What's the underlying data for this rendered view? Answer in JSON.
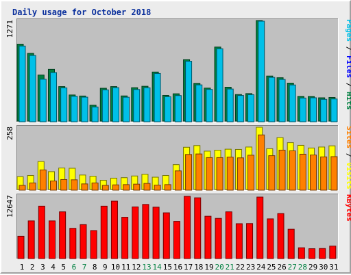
{
  "title": "Daily usage for October 2018",
  "colors": {
    "pages": "#00c0e8",
    "files": "#0000ff",
    "hits": "#008040",
    "sites": "#ff8000",
    "visits": "#ffff00",
    "kbytes": "#ff0000",
    "weekday_label": "#000000",
    "weekend_label": "#008040",
    "separator": "#000000"
  },
  "chart_data": {
    "type": "bar",
    "categories": [
      "1",
      "2",
      "3",
      "4",
      "5",
      "6",
      "7",
      "8",
      "9",
      "10",
      "11",
      "12",
      "13",
      "14",
      "15",
      "16",
      "17",
      "18",
      "19",
      "20",
      "21",
      "22",
      "23",
      "24",
      "25",
      "26",
      "27",
      "28",
      "29",
      "30",
      "31"
    ],
    "weekend_days": [
      "6",
      "7",
      "13",
      "14",
      "20",
      "21",
      "27",
      "28"
    ],
    "panels": [
      {
        "id": "top",
        "max_label": "1271",
        "ylim": [
          0,
          1271
        ],
        "side_label": {
          "parts": [
            {
              "text": "Pages",
              "color_key": "pages"
            },
            {
              "text": " / ",
              "color_key": "separator"
            },
            {
              "text": "Files",
              "color_key": "files"
            },
            {
              "text": " / ",
              "color_key": "separator"
            },
            {
              "text": "Hits",
              "color_key": "hits"
            }
          ]
        },
        "series": [
          {
            "name": "Hits",
            "color_key": "hits",
            "values": [
              972,
              856,
              582,
              654,
              436,
              330,
              317,
              201,
              415,
              436,
              318,
              422,
              440,
              620,
              324,
              345,
              777,
              477,
              417,
              936,
              428,
              336,
              347,
              1271,
              569,
              548,
              480,
              312,
              311,
              294,
              298
            ]
          },
          {
            "name": "Pages",
            "color_key": "pages",
            "values": [
              957,
              838,
              538,
              622,
              428,
              322,
              311,
              187,
              403,
              431,
              310,
              408,
              430,
              610,
              316,
              331,
              765,
              466,
              409,
              923,
              414,
              332,
              342,
              1271,
              561,
              535,
              465,
              300,
              303,
              283,
              288
            ]
          }
        ]
      },
      {
        "id": "middle",
        "max_label": "258",
        "ylim": [
          0,
          258
        ],
        "side_label": {
          "parts": [
            {
              "text": "Sites",
              "color_key": "sites"
            },
            {
              "text": " / ",
              "color_key": "separator"
            },
            {
              "text": "Visits",
              "color_key": "visits"
            }
          ]
        },
        "series": [
          {
            "name": "Visits",
            "color_key": "visits",
            "values": [
              53,
              58,
              116,
              74,
              89,
              88,
              60,
              55,
              38,
              47,
              49,
              56,
              63,
              51,
              58,
              103,
              175,
              182,
              159,
              163,
              167,
              166,
              176,
              258,
              169,
              215,
              194,
              183,
              172,
              176,
              181
            ]
          },
          {
            "name": "Sites",
            "color_key": "sites",
            "values": [
              20,
              30,
              84,
              38,
              44,
              43,
              26,
              30,
              20,
              22,
              23,
              25,
              28,
              21,
              23,
              80,
              148,
              150,
              135,
              135,
              137,
              134,
              145,
              229,
              143,
              166,
              163,
              149,
              146,
              138,
              139
            ]
          }
        ]
      },
      {
        "id": "bottom",
        "max_label": "12647",
        "ylim": [
          0,
          12647
        ],
        "side_label": {
          "parts": [
            {
              "text": "KBytes",
              "color_key": "kbytes"
            }
          ]
        },
        "series": [
          {
            "name": "KBytes",
            "color_key": "kbytes",
            "values": [
              4530,
              7660,
              10650,
              7660,
              9500,
              6150,
              6900,
              5690,
              10650,
              11670,
              8400,
              10500,
              11000,
              10450,
              9300,
              7560,
              12647,
              12350,
              8600,
              8170,
              9500,
              7090,
              7120,
              12500,
              8070,
              9150,
              5960,
              2200,
              2010,
              2050,
              2540
            ]
          }
        ]
      }
    ]
  }
}
